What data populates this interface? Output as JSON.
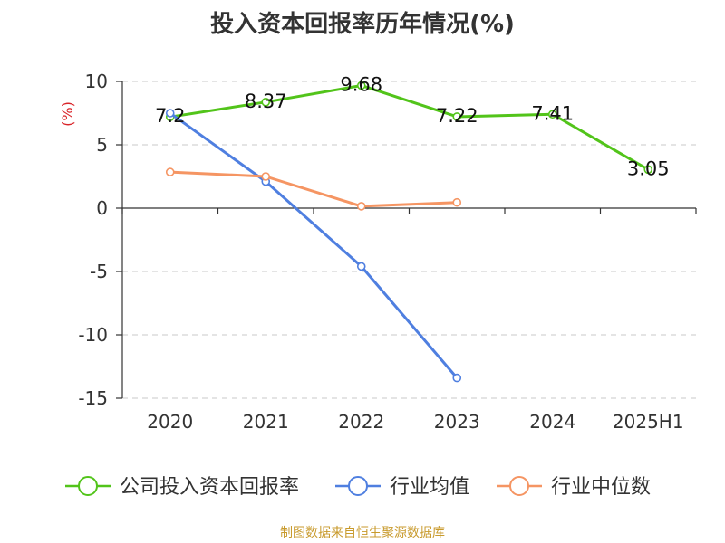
{
  "chart_data": {
    "type": "line",
    "title": "投入资本回报率历年情况(%)",
    "ylabel": "(%)",
    "xlabel": "",
    "categories": [
      "2020",
      "2021",
      "2022",
      "2023",
      "2024",
      "2025H1"
    ],
    "ylim": [
      -15,
      10
    ],
    "yticks": [
      10,
      5,
      0,
      -5,
      -10,
      -15
    ],
    "grid": true,
    "legend_position": "bottom",
    "series": [
      {
        "name": "公司投入资本回报率",
        "color": "#52c41a",
        "values": [
          7.2,
          8.37,
          9.68,
          7.22,
          7.41,
          3.05
        ],
        "labels": [
          "7.2",
          "8.37",
          "9.68",
          "7.22",
          "7.41",
          "3.05"
        ]
      },
      {
        "name": "行业均值",
        "color": "#4f7fe0",
        "values": [
          7.5,
          2.1,
          -4.6,
          -13.4,
          null,
          null
        ]
      },
      {
        "name": "行业中位数",
        "color": "#f59563",
        "values": [
          2.85,
          2.5,
          0.15,
          0.45,
          null,
          null
        ]
      }
    ]
  },
  "source": "制图数据来自恒生聚源数据库"
}
